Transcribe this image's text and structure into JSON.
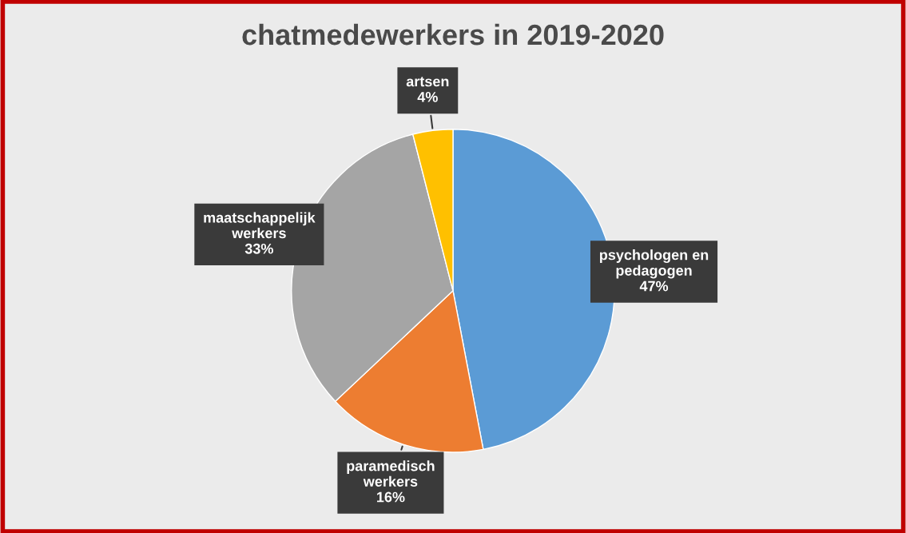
{
  "chart_data": {
    "type": "pie",
    "title": "chatmedewerkers in 2019-2020",
    "categories": [
      "psychologen en\npedagogen",
      "paramedisch\nwerkers",
      "maatschappelijk\nwerkers",
      "artsen"
    ],
    "values": [
      47,
      16,
      33,
      4
    ],
    "colors": [
      "#5b9bd5",
      "#ed7d31",
      "#a5a5a5",
      "#ffc000"
    ],
    "value_labels": [
      "47%",
      "16%",
      "33%",
      "4%"
    ]
  }
}
